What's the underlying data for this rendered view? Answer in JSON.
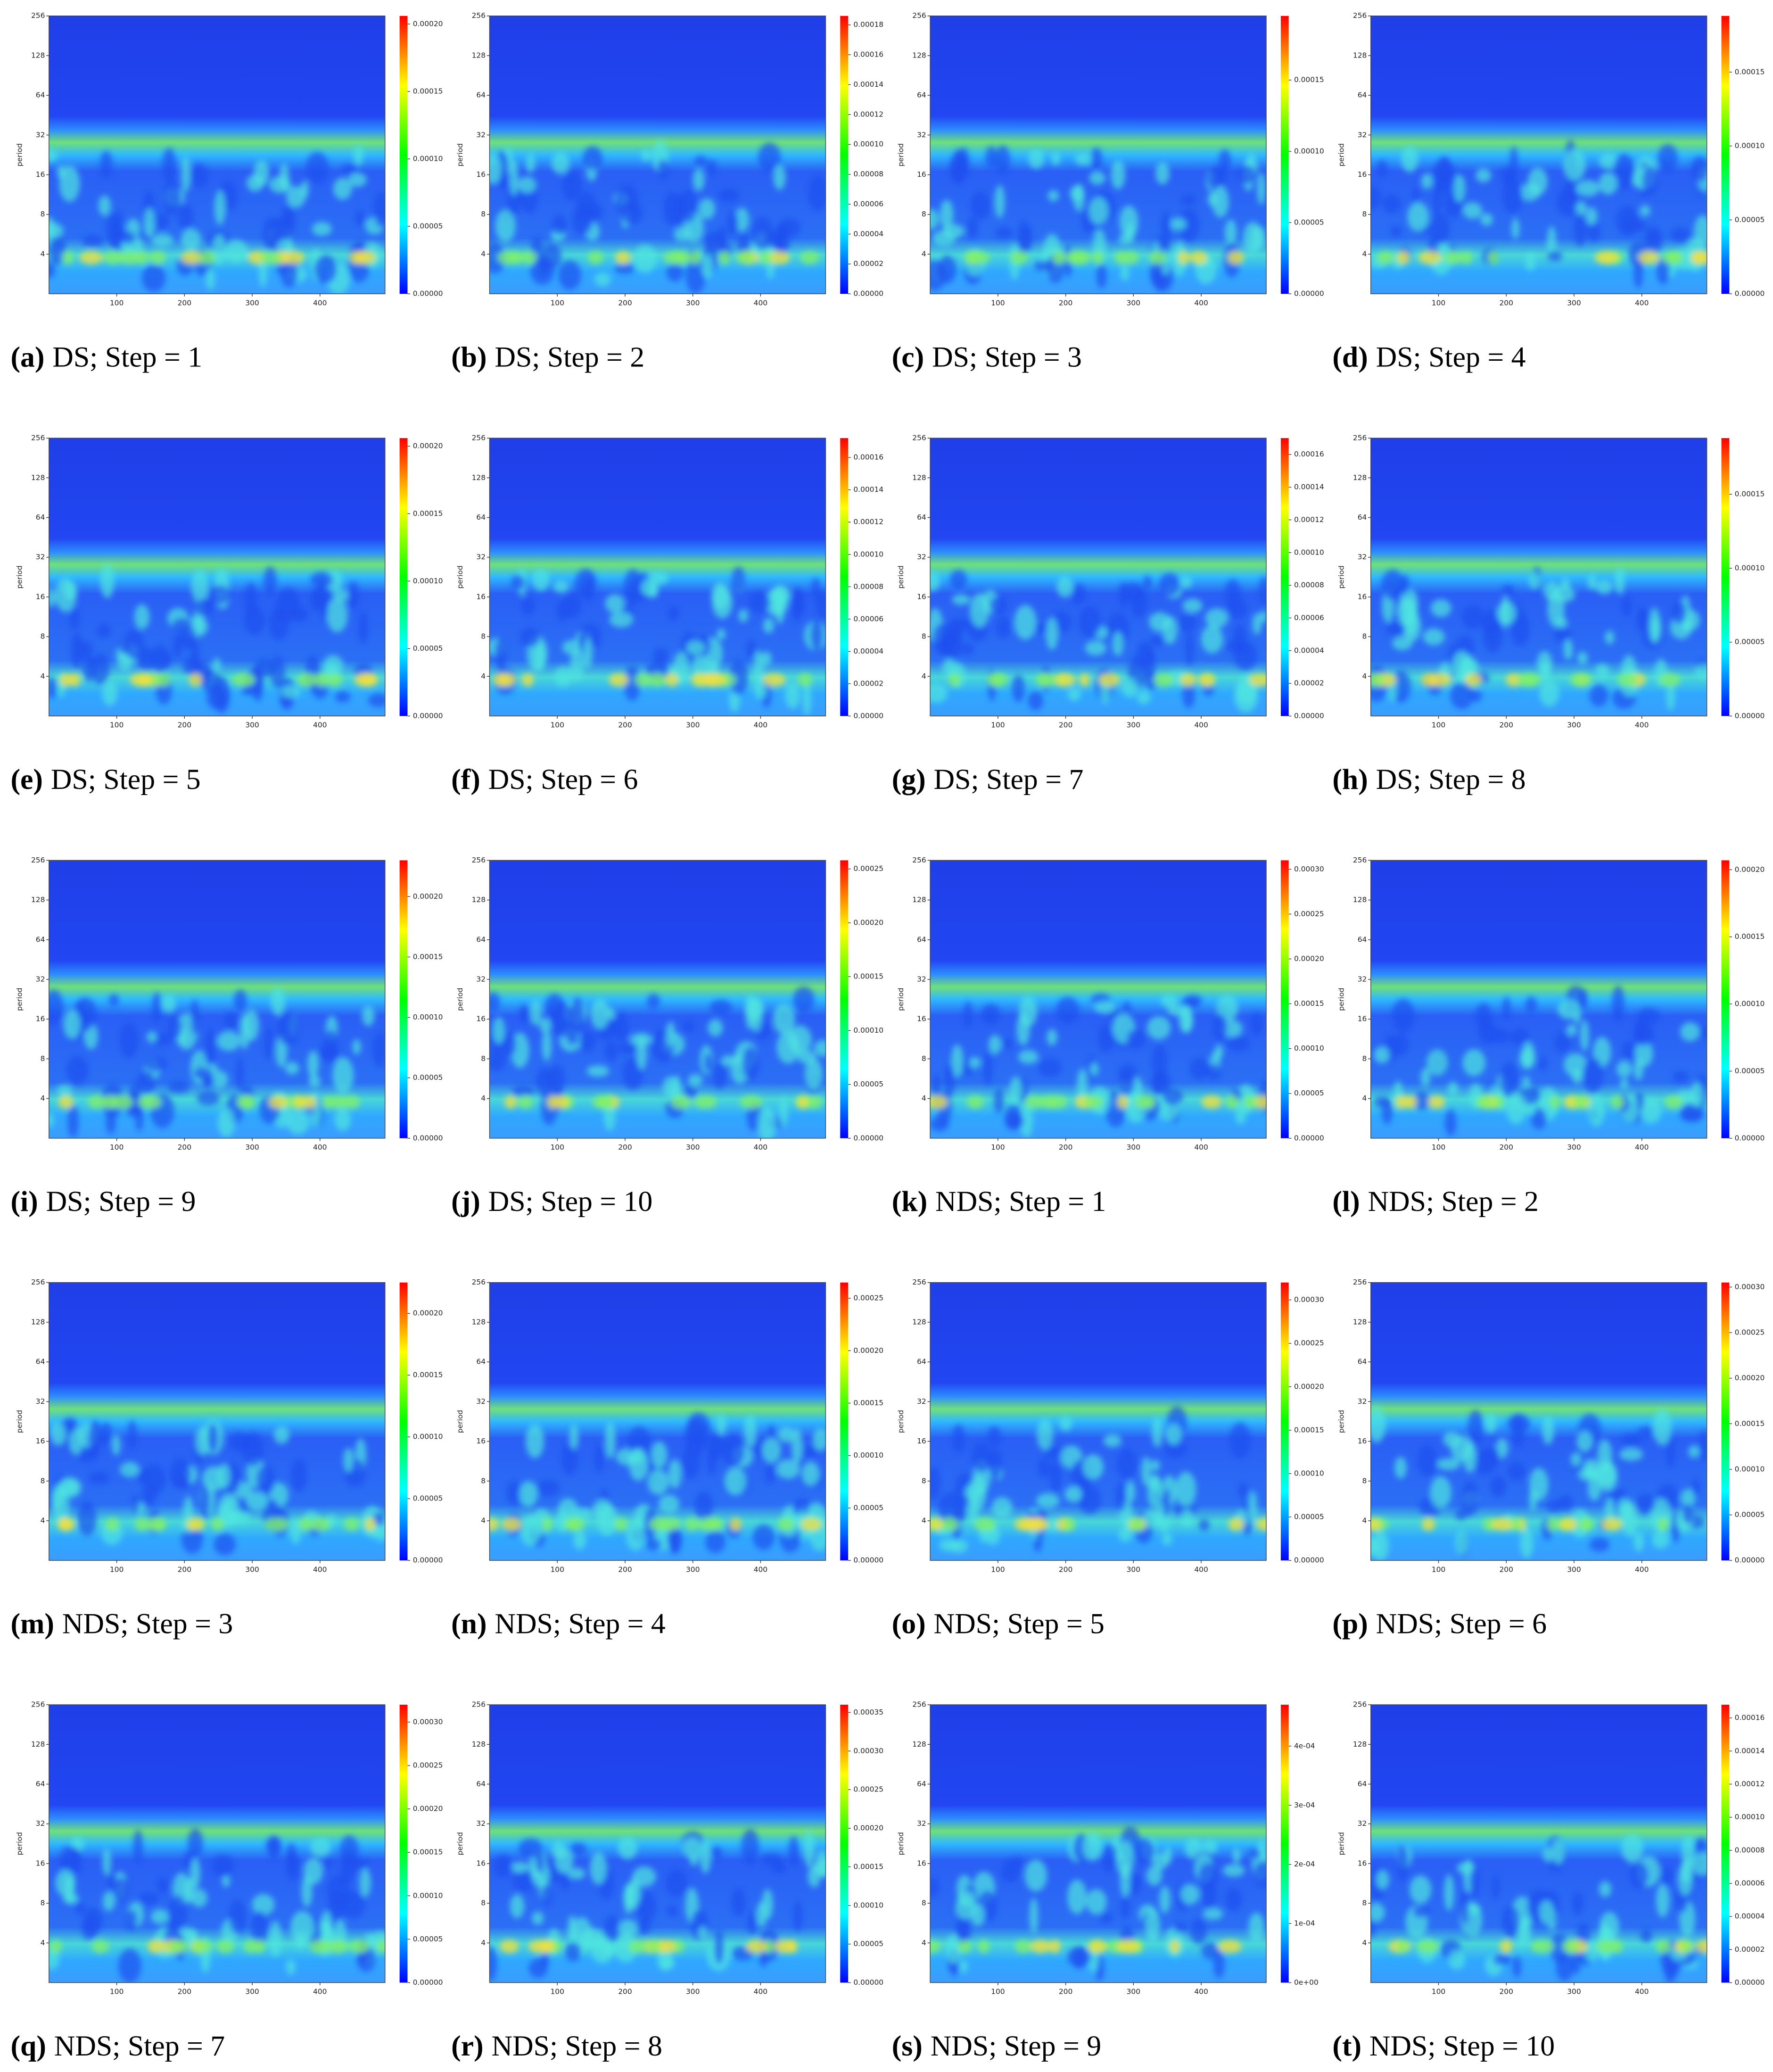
{
  "colorscale": [
    "#0000ff",
    "#00ffff",
    "#00ff00",
    "#ffff00",
    "#ff0000"
  ],
  "chart_data": [
    {
      "type": "heatmap",
      "label": "(a)",
      "caption": "DS; Step = 1",
      "ylabel": "period",
      "xlim": [
        0,
        496
      ],
      "xticks": [
        100,
        200,
        300,
        400
      ],
      "ylim": [
        2,
        256
      ],
      "log_y": true,
      "yticks": [
        4,
        8,
        16,
        32,
        64,
        128,
        256
      ],
      "zlim": [
        0,
        0.000206
      ],
      "zticks": [
        {
          "value": 0,
          "label": "0.00000"
        },
        {
          "value": 5e-05,
          "label": "0.00005"
        },
        {
          "value": 0.0001,
          "label": "0.00010"
        },
        {
          "value": 0.00015,
          "label": "0.00015"
        },
        {
          "value": 0.0002,
          "label": "0.00020"
        }
      ]
    },
    {
      "type": "heatmap",
      "label": "(b)",
      "caption": "DS; Step = 2",
      "ylabel": "period",
      "xlim": [
        0,
        496
      ],
      "xticks": [
        100,
        200,
        300,
        400
      ],
      "ylim": [
        2,
        256
      ],
      "log_y": true,
      "yticks": [
        4,
        8,
        16,
        32,
        64,
        128,
        256
      ],
      "zlim": [
        0,
        0.000186
      ],
      "zticks": [
        {
          "value": 0,
          "label": "0.00000"
        },
        {
          "value": 2e-05,
          "label": "0.00002"
        },
        {
          "value": 4e-05,
          "label": "0.00004"
        },
        {
          "value": 6e-05,
          "label": "0.00006"
        },
        {
          "value": 8e-05,
          "label": "0.00008"
        },
        {
          "value": 0.0001,
          "label": "0.00010"
        },
        {
          "value": 0.00012,
          "label": "0.00012"
        },
        {
          "value": 0.00014,
          "label": "0.00014"
        },
        {
          "value": 0.00016,
          "label": "0.00016"
        },
        {
          "value": 0.00018,
          "label": "0.00018"
        }
      ]
    },
    {
      "type": "heatmap",
      "label": "(c)",
      "caption": "DS; Step = 3",
      "ylabel": "period",
      "xlim": [
        0,
        496
      ],
      "xticks": [
        100,
        200,
        300,
        400
      ],
      "ylim": [
        2,
        256
      ],
      "log_y": true,
      "yticks": [
        4,
        8,
        16,
        32,
        64,
        128,
        256
      ],
      "zlim": [
        0,
        0.000195
      ],
      "zticks": [
        {
          "value": 0,
          "label": "0.00000"
        },
        {
          "value": 5e-05,
          "label": "0.00005"
        },
        {
          "value": 0.0001,
          "label": "0.00010"
        },
        {
          "value": 0.00015,
          "label": "0.00015"
        }
      ]
    },
    {
      "type": "heatmap",
      "label": "(d)",
      "caption": "DS; Step = 4",
      "ylabel": "period",
      "xlim": [
        0,
        496
      ],
      "xticks": [
        100,
        200,
        300,
        400
      ],
      "ylim": [
        2,
        256
      ],
      "log_y": true,
      "yticks": [
        4,
        8,
        16,
        32,
        64,
        128,
        256
      ],
      "zlim": [
        0,
        0.000188
      ],
      "zticks": [
        {
          "value": 0,
          "label": "0.00000"
        },
        {
          "value": 5e-05,
          "label": "0.00005"
        },
        {
          "value": 0.0001,
          "label": "0.00010"
        },
        {
          "value": 0.00015,
          "label": "0.00015"
        }
      ]
    },
    {
      "type": "heatmap",
      "label": "(e)",
      "caption": "DS; Step = 5",
      "ylabel": "period",
      "xlim": [
        0,
        496
      ],
      "xticks": [
        100,
        200,
        300,
        400
      ],
      "ylim": [
        2,
        256
      ],
      "log_y": true,
      "yticks": [
        4,
        8,
        16,
        32,
        64,
        128,
        256
      ],
      "zlim": [
        0,
        0.000206
      ],
      "zticks": [
        {
          "value": 0,
          "label": "0.00000"
        },
        {
          "value": 5e-05,
          "label": "0.00005"
        },
        {
          "value": 0.0001,
          "label": "0.00010"
        },
        {
          "value": 0.00015,
          "label": "0.00015"
        },
        {
          "value": 0.0002,
          "label": "0.00020"
        }
      ]
    },
    {
      "type": "heatmap",
      "label": "(f)",
      "caption": "DS; Step = 6",
      "ylabel": "period",
      "xlim": [
        0,
        496
      ],
      "xticks": [
        100,
        200,
        300,
        400
      ],
      "ylim": [
        2,
        256
      ],
      "log_y": true,
      "yticks": [
        4,
        8,
        16,
        32,
        64,
        128,
        256
      ],
      "zlim": [
        0,
        0.000172
      ],
      "zticks": [
        {
          "value": 0,
          "label": "0.00000"
        },
        {
          "value": 2e-05,
          "label": "0.00002"
        },
        {
          "value": 4e-05,
          "label": "0.00004"
        },
        {
          "value": 6e-05,
          "label": "0.00006"
        },
        {
          "value": 8e-05,
          "label": "0.00008"
        },
        {
          "value": 0.0001,
          "label": "0.00010"
        },
        {
          "value": 0.00012,
          "label": "0.00012"
        },
        {
          "value": 0.00014,
          "label": "0.00014"
        },
        {
          "value": 0.00016,
          "label": "0.00016"
        }
      ]
    },
    {
      "type": "heatmap",
      "label": "(g)",
      "caption": "DS; Step = 7",
      "ylabel": "period",
      "xlim": [
        0,
        496
      ],
      "xticks": [
        100,
        200,
        300,
        400
      ],
      "ylim": [
        2,
        256
      ],
      "log_y": true,
      "yticks": [
        4,
        8,
        16,
        32,
        64,
        128,
        256
      ],
      "zlim": [
        0,
        0.00017
      ],
      "zticks": [
        {
          "value": 0,
          "label": "0.00000"
        },
        {
          "value": 2e-05,
          "label": "0.00002"
        },
        {
          "value": 4e-05,
          "label": "0.00004"
        },
        {
          "value": 6e-05,
          "label": "0.00006"
        },
        {
          "value": 8e-05,
          "label": "0.00008"
        },
        {
          "value": 0.0001,
          "label": "0.00010"
        },
        {
          "value": 0.00012,
          "label": "0.00012"
        },
        {
          "value": 0.00014,
          "label": "0.00014"
        },
        {
          "value": 0.00016,
          "label": "0.00016"
        }
      ]
    },
    {
      "type": "heatmap",
      "label": "(h)",
      "caption": "DS; Step = 8",
      "ylabel": "period",
      "xlim": [
        0,
        496
      ],
      "xticks": [
        100,
        200,
        300,
        400
      ],
      "ylim": [
        2,
        256
      ],
      "log_y": true,
      "yticks": [
        4,
        8,
        16,
        32,
        64,
        128,
        256
      ],
      "zlim": [
        0,
        0.000188
      ],
      "zticks": [
        {
          "value": 0,
          "label": "0.00000"
        },
        {
          "value": 5e-05,
          "label": "0.00005"
        },
        {
          "value": 0.0001,
          "label": "0.00010"
        },
        {
          "value": 0.00015,
          "label": "0.00015"
        }
      ]
    },
    {
      "type": "heatmap",
      "label": "(i)",
      "caption": "DS; Step = 9",
      "ylabel": "period",
      "xlim": [
        0,
        496
      ],
      "xticks": [
        100,
        200,
        300,
        400
      ],
      "ylim": [
        2,
        256
      ],
      "log_y": true,
      "yticks": [
        4,
        8,
        16,
        32,
        64,
        128,
        256
      ],
      "zlim": [
        0,
        0.00023
      ],
      "zticks": [
        {
          "value": 0,
          "label": "0.00000"
        },
        {
          "value": 5e-05,
          "label": "0.00005"
        },
        {
          "value": 0.0001,
          "label": "0.00010"
        },
        {
          "value": 0.00015,
          "label": "0.00015"
        },
        {
          "value": 0.0002,
          "label": "0.00020"
        }
      ]
    },
    {
      "type": "heatmap",
      "label": "(j)",
      "caption": "DS; Step = 10",
      "ylabel": "period",
      "xlim": [
        0,
        496
      ],
      "xticks": [
        100,
        200,
        300,
        400
      ],
      "ylim": [
        2,
        256
      ],
      "log_y": true,
      "yticks": [
        4,
        8,
        16,
        32,
        64,
        128,
        256
      ],
      "zlim": [
        0,
        0.000258
      ],
      "zticks": [
        {
          "value": 0,
          "label": "0.00000"
        },
        {
          "value": 5e-05,
          "label": "0.00005"
        },
        {
          "value": 0.0001,
          "label": "0.00010"
        },
        {
          "value": 0.00015,
          "label": "0.00015"
        },
        {
          "value": 0.0002,
          "label": "0.00020"
        },
        {
          "value": 0.00025,
          "label": "0.00025"
        }
      ]
    },
    {
      "type": "heatmap",
      "label": "(k)",
      "caption": "NDS; Step = 1",
      "ylabel": "period",
      "xlim": [
        0,
        496
      ],
      "xticks": [
        100,
        200,
        300,
        400
      ],
      "ylim": [
        2,
        256
      ],
      "log_y": true,
      "yticks": [
        4,
        8,
        16,
        32,
        64,
        128,
        256
      ],
      "zlim": [
        0,
        0.00031
      ],
      "zticks": [
        {
          "value": 0,
          "label": "0.00000"
        },
        {
          "value": 5e-05,
          "label": "0.00005"
        },
        {
          "value": 0.0001,
          "label": "0.00010"
        },
        {
          "value": 0.00015,
          "label": "0.00015"
        },
        {
          "value": 0.0002,
          "label": "0.00020"
        },
        {
          "value": 0.00025,
          "label": "0.00025"
        },
        {
          "value": 0.0003,
          "label": "0.00030"
        }
      ]
    },
    {
      "type": "heatmap",
      "label": "(l)",
      "caption": "NDS; Step = 2",
      "ylabel": "period",
      "xlim": [
        0,
        496
      ],
      "xticks": [
        100,
        200,
        300,
        400
      ],
      "ylim": [
        2,
        256
      ],
      "log_y": true,
      "yticks": [
        4,
        8,
        16,
        32,
        64,
        128,
        256
      ],
      "zlim": [
        0,
        0.000207
      ],
      "zticks": [
        {
          "value": 0,
          "label": "0.00000"
        },
        {
          "value": 5e-05,
          "label": "0.00005"
        },
        {
          "value": 0.0001,
          "label": "0.00010"
        },
        {
          "value": 0.00015,
          "label": "0.00015"
        },
        {
          "value": 0.0002,
          "label": "0.00020"
        }
      ]
    },
    {
      "type": "heatmap",
      "label": "(m)",
      "caption": "NDS; Step = 3",
      "ylabel": "period",
      "xlim": [
        0,
        496
      ],
      "xticks": [
        100,
        200,
        300,
        400
      ],
      "ylim": [
        2,
        256
      ],
      "log_y": true,
      "yticks": [
        4,
        8,
        16,
        32,
        64,
        128,
        256
      ],
      "zlim": [
        0,
        0.000225
      ],
      "zticks": [
        {
          "value": 0,
          "label": "0.00000"
        },
        {
          "value": 5e-05,
          "label": "0.00005"
        },
        {
          "value": 0.0001,
          "label": "0.00010"
        },
        {
          "value": 0.00015,
          "label": "0.00015"
        },
        {
          "value": 0.0002,
          "label": "0.00020"
        }
      ]
    },
    {
      "type": "heatmap",
      "label": "(n)",
      "caption": "NDS; Step = 4",
      "ylabel": "period",
      "xlim": [
        0,
        496
      ],
      "xticks": [
        100,
        200,
        300,
        400
      ],
      "ylim": [
        2,
        256
      ],
      "log_y": true,
      "yticks": [
        4,
        8,
        16,
        32,
        64,
        128,
        256
      ],
      "zlim": [
        0,
        0.000265
      ],
      "zticks": [
        {
          "value": 0,
          "label": "0.00000"
        },
        {
          "value": 5e-05,
          "label": "0.00005"
        },
        {
          "value": 0.0001,
          "label": "0.00010"
        },
        {
          "value": 0.00015,
          "label": "0.00015"
        },
        {
          "value": 0.0002,
          "label": "0.00020"
        },
        {
          "value": 0.00025,
          "label": "0.00025"
        }
      ]
    },
    {
      "type": "heatmap",
      "label": "(o)",
      "caption": "NDS; Step = 5",
      "ylabel": "period",
      "xlim": [
        0,
        496
      ],
      "xticks": [
        100,
        200,
        300,
        400
      ],
      "ylim": [
        2,
        256
      ],
      "log_y": true,
      "yticks": [
        4,
        8,
        16,
        32,
        64,
        128,
        256
      ],
      "zlim": [
        0,
        0.00032
      ],
      "zticks": [
        {
          "value": 0,
          "label": "0.00000"
        },
        {
          "value": 5e-05,
          "label": "0.00005"
        },
        {
          "value": 0.0001,
          "label": "0.00010"
        },
        {
          "value": 0.00015,
          "label": "0.00015"
        },
        {
          "value": 0.0002,
          "label": "0.00020"
        },
        {
          "value": 0.00025,
          "label": "0.00025"
        },
        {
          "value": 0.0003,
          "label": "0.00030"
        }
      ]
    },
    {
      "type": "heatmap",
      "label": "(p)",
      "caption": "NDS; Step = 6",
      "ylabel": "period",
      "xlim": [
        0,
        496
      ],
      "xticks": [
        100,
        200,
        300,
        400
      ],
      "ylim": [
        2,
        256
      ],
      "log_y": true,
      "yticks": [
        4,
        8,
        16,
        32,
        64,
        128,
        256
      ],
      "zlim": [
        0,
        0.000305
      ],
      "zticks": [
        {
          "value": 0,
          "label": "0.00000"
        },
        {
          "value": 5e-05,
          "label": "0.00005"
        },
        {
          "value": 0.0001,
          "label": "0.00010"
        },
        {
          "value": 0.00015,
          "label": "0.00015"
        },
        {
          "value": 0.0002,
          "label": "0.00020"
        },
        {
          "value": 0.00025,
          "label": "0.00025"
        },
        {
          "value": 0.0003,
          "label": "0.00030"
        }
      ]
    },
    {
      "type": "heatmap",
      "label": "(q)",
      "caption": "NDS; Step = 7",
      "ylabel": "period",
      "xlim": [
        0,
        496
      ],
      "xticks": [
        100,
        200,
        300,
        400
      ],
      "ylim": [
        2,
        256
      ],
      "log_y": true,
      "yticks": [
        4,
        8,
        16,
        32,
        64,
        128,
        256
      ],
      "zlim": [
        0,
        0.00032
      ],
      "zticks": [
        {
          "value": 0,
          "label": "0.00000"
        },
        {
          "value": 5e-05,
          "label": "0.00005"
        },
        {
          "value": 0.0001,
          "label": "0.00010"
        },
        {
          "value": 0.00015,
          "label": "0.00015"
        },
        {
          "value": 0.0002,
          "label": "0.00020"
        },
        {
          "value": 0.00025,
          "label": "0.00025"
        },
        {
          "value": 0.0003,
          "label": "0.00030"
        }
      ]
    },
    {
      "type": "heatmap",
      "label": "(r)",
      "caption": "NDS; Step = 8",
      "ylabel": "period",
      "xlim": [
        0,
        496
      ],
      "xticks": [
        100,
        200,
        300,
        400
      ],
      "ylim": [
        2,
        256
      ],
      "log_y": true,
      "yticks": [
        4,
        8,
        16,
        32,
        64,
        128,
        256
      ],
      "zlim": [
        0,
        0.00036
      ],
      "zticks": [
        {
          "value": 0,
          "label": "0.00000"
        },
        {
          "value": 5e-05,
          "label": "0.00005"
        },
        {
          "value": 0.0001,
          "label": "0.00010"
        },
        {
          "value": 0.00015,
          "label": "0.00015"
        },
        {
          "value": 0.0002,
          "label": "0.00020"
        },
        {
          "value": 0.00025,
          "label": "0.00025"
        },
        {
          "value": 0.0003,
          "label": "0.00030"
        },
        {
          "value": 0.00035,
          "label": "0.00035"
        }
      ]
    },
    {
      "type": "heatmap",
      "label": "(s)",
      "caption": "NDS; Step = 9",
      "ylabel": "period",
      "xlim": [
        0,
        496
      ],
      "xticks": [
        100,
        200,
        300,
        400
      ],
      "ylim": [
        2,
        256
      ],
      "log_y": true,
      "yticks": [
        4,
        8,
        16,
        32,
        64,
        128,
        256
      ],
      "zlim": [
        0,
        0.00047
      ],
      "zticks": [
        {
          "value": 0,
          "label": "0e+00"
        },
        {
          "value": 0.0001,
          "label": "1e-04"
        },
        {
          "value": 0.0002,
          "label": "2e-04"
        },
        {
          "value": 0.0003,
          "label": "3e-04"
        },
        {
          "value": 0.0004,
          "label": "4e-04"
        }
      ]
    },
    {
      "type": "heatmap",
      "label": "(t)",
      "caption": "NDS; Step = 10",
      "ylabel": "period",
      "xlim": [
        0,
        496
      ],
      "xticks": [
        100,
        200,
        300,
        400
      ],
      "ylim": [
        2,
        256
      ],
      "log_y": true,
      "yticks": [
        4,
        8,
        16,
        32,
        64,
        128,
        256
      ],
      "zlim": [
        0,
        0.000168
      ],
      "zticks": [
        {
          "value": 0,
          "label": "0.00000"
        },
        {
          "value": 2e-05,
          "label": "0.00002"
        },
        {
          "value": 4e-05,
          "label": "0.00004"
        },
        {
          "value": 6e-05,
          "label": "0.00006"
        },
        {
          "value": 8e-05,
          "label": "0.00008"
        },
        {
          "value": 0.0001,
          "label": "0.00010"
        },
        {
          "value": 0.00012,
          "label": "0.00012"
        },
        {
          "value": 0.00014,
          "label": "0.00014"
        },
        {
          "value": 0.00016,
          "label": "0.00016"
        }
      ]
    }
  ]
}
